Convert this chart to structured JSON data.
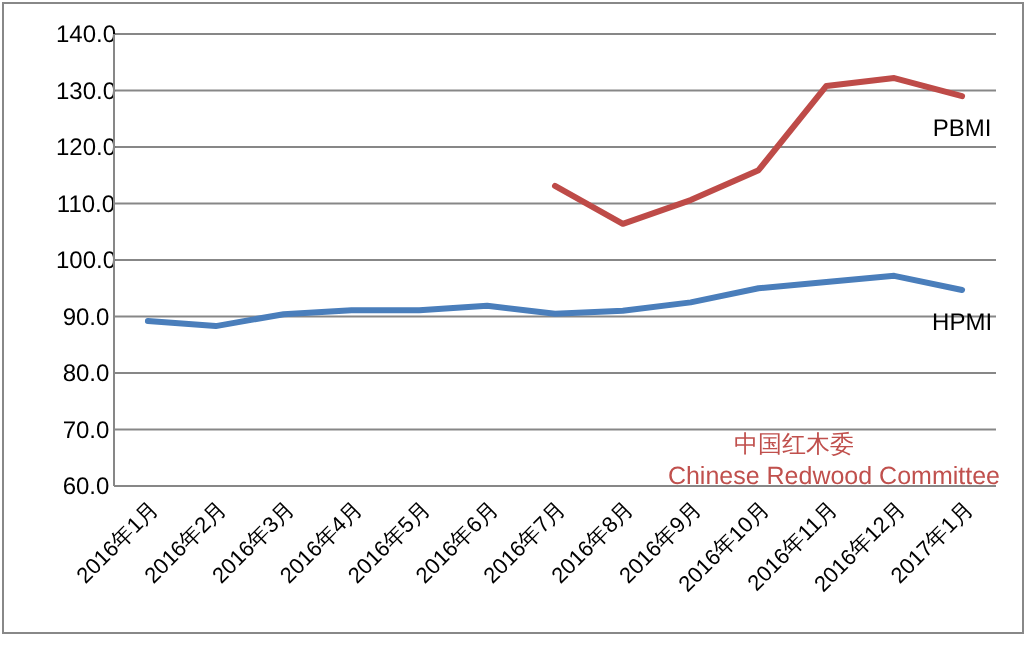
{
  "chart_data": {
    "type": "line",
    "categories": [
      "2016年1月",
      "2016年2月",
      "2016年3月",
      "2016年4月",
      "2016年5月",
      "2016年6月",
      "2016年7月",
      "2016年8月",
      "2016年9月",
      "2016年10月",
      "2016年11月",
      "2016年12月",
      "2017年1月"
    ],
    "series": [
      {
        "name": "PBMI",
        "color": "#be4b48",
        "values": [
          null,
          null,
          null,
          null,
          null,
          null,
          113.1,
          106.4,
          110.6,
          115.9,
          130.8,
          132.2,
          129.0
        ]
      },
      {
        "name": "HPMI",
        "color": "#4a7ebb",
        "values": [
          89.2,
          88.3,
          90.4,
          91.1,
          91.1,
          91.9,
          90.5,
          91.0,
          92.5,
          95.0,
          96.1,
          97.2,
          94.7
        ]
      }
    ],
    "ylim": [
      60,
      140
    ],
    "yticks": [
      {
        "value": 60,
        "label": "60.0"
      },
      {
        "value": 70,
        "label": "70.0"
      },
      {
        "value": 80,
        "label": "80.0"
      },
      {
        "value": 90,
        "label": "90.0"
      },
      {
        "value": 100,
        "label": "100.0"
      },
      {
        "value": 110,
        "label": "110.0"
      },
      {
        "value": 120,
        "label": "120.0"
      },
      {
        "value": 130,
        "label": "130.0"
      },
      {
        "value": 140,
        "label": "140.0"
      }
    ],
    "grid": "y",
    "legend": false,
    "annotations": [
      "中国红木委",
      "Chinese Redwood Committee"
    ]
  }
}
